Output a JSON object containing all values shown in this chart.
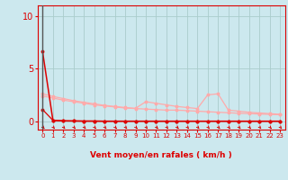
{
  "xlabel": "Vent moyen/en rafales ( km/h )",
  "yticks": [
    0,
    5,
    10
  ],
  "ylim": [
    -0.8,
    11
  ],
  "xlim": [
    -0.5,
    23.5
  ],
  "xticks": [
    0,
    1,
    2,
    3,
    4,
    5,
    6,
    7,
    8,
    9,
    10,
    11,
    12,
    13,
    14,
    15,
    16,
    17,
    18,
    19,
    20,
    21,
    22,
    23
  ],
  "bg_color": "#cce8ee",
  "grid_color": "#aacccc",
  "line_color_dark": "#dd0000",
  "line_color_light": "#ffaaaa",
  "tick_color": "#dd0000",
  "xlabel_color": "#dd0000",
  "axis_color": "#dd0000",
  "vline_color": "#555555",
  "line1_y": [
    6.6,
    0.08,
    0.03,
    0.02,
    0.01,
    0.01,
    0.0,
    0.0,
    0.0,
    0.0,
    0.0,
    0.0,
    0.0,
    0.0,
    0.0,
    0.0,
    0.0,
    0.0,
    0.0,
    0.0,
    0.0,
    0.0,
    0.0,
    0.0
  ],
  "line2_y": [
    1.1,
    0.08,
    0.03,
    0.02,
    0.01,
    0.01,
    0.0,
    0.0,
    0.0,
    0.0,
    0.0,
    0.0,
    0.0,
    0.0,
    0.0,
    0.0,
    0.0,
    0.0,
    0.0,
    0.0,
    0.0,
    0.0,
    0.0,
    0.0
  ],
  "line3_y": [
    2.4,
    2.2,
    2.0,
    1.85,
    1.7,
    1.55,
    1.45,
    1.35,
    1.25,
    1.2,
    1.15,
    1.1,
    1.05,
    1.05,
    1.0,
    0.95,
    0.9,
    0.85,
    0.8,
    0.75,
    0.72,
    0.68,
    0.65,
    0.62
  ],
  "line4_y": [
    2.6,
    2.35,
    2.15,
    1.95,
    1.8,
    1.65,
    1.5,
    1.4,
    1.3,
    1.22,
    1.85,
    1.7,
    1.55,
    1.4,
    1.3,
    1.2,
    2.5,
    2.6,
    1.05,
    0.95,
    0.85,
    0.78,
    0.72,
    0.65
  ]
}
